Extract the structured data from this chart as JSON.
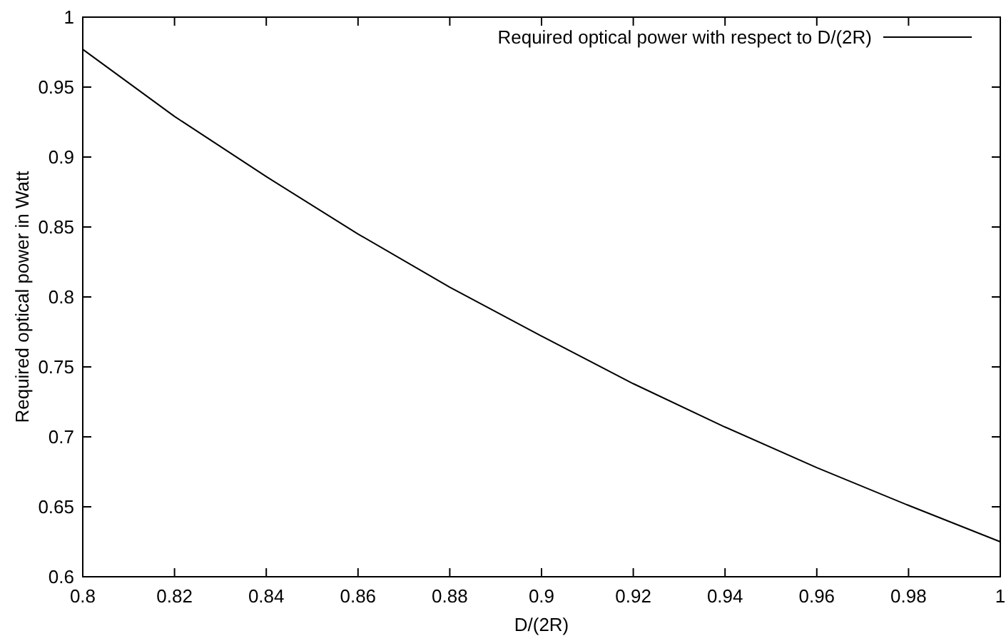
{
  "chart_data": {
    "type": "line",
    "xlabel": "D/(2R)",
    "ylabel": "Required optical power in Watt",
    "x": [
      0.8,
      0.82,
      0.84,
      0.86,
      0.88,
      0.9,
      0.92,
      0.94,
      0.96,
      0.98,
      1.0
    ],
    "series": [
      {
        "name": "Required optical power with respect to D/(2R)",
        "color": "#000000",
        "values": [
          0.977,
          0.929,
          0.886,
          0.845,
          0.807,
          0.772,
          0.738,
          0.707,
          0.678,
          0.651,
          0.625
        ]
      }
    ],
    "xlim": [
      0.8,
      1
    ],
    "xticks": [
      0.8,
      0.82,
      0.84,
      0.86,
      0.88,
      0.9,
      0.92,
      0.94,
      0.96,
      0.98,
      1
    ],
    "ylim": [
      0.6,
      1
    ],
    "yticks": [
      0.6,
      0.65,
      0.7,
      0.75,
      0.8,
      0.85,
      0.9,
      0.95,
      1
    ],
    "grid": false,
    "legend": "top right",
    "marker": "none",
    "line_style": "solid"
  }
}
